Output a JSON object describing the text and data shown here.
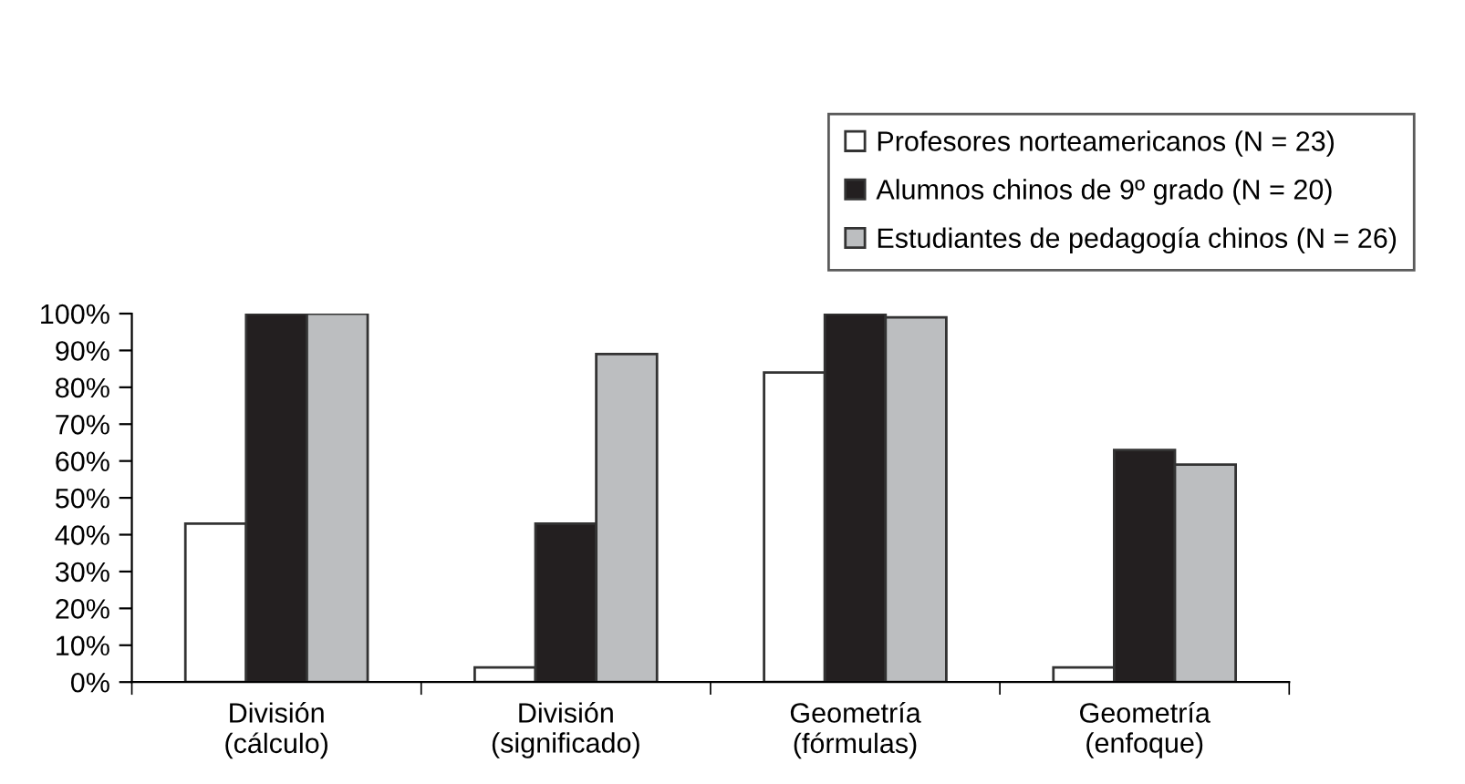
{
  "chart_data": {
    "type": "bar",
    "categories": [
      "División\n(cálculo)",
      "División\n(significado)",
      "Geometría\n(fórmulas)",
      "Geometría\n(enfoque)"
    ],
    "series": [
      {
        "name": "Profesores norteamericanos (N = 23)",
        "color": "#ffffff",
        "values": [
          43,
          4,
          84,
          4
        ]
      },
      {
        "name": "Alumnos chinos de 9º grado (N = 20)",
        "color": "#231f20",
        "values": [
          100,
          43,
          100,
          63
        ]
      },
      {
        "name": "Estudiantes de pedagogía chinos (N = 26)",
        "color": "#bcbec0",
        "values": [
          100,
          89,
          99,
          59
        ]
      }
    ],
    "ylim": [
      0,
      100
    ],
    "yticks": [
      {
        "value": 0,
        "label": "0%"
      },
      {
        "value": 10,
        "label": "10%"
      },
      {
        "value": 20,
        "label": "20%"
      },
      {
        "value": 30,
        "label": "30%"
      },
      {
        "value": 40,
        "label": "40%"
      },
      {
        "value": 50,
        "label": "50%"
      },
      {
        "value": 60,
        "label": "60%"
      },
      {
        "value": 70,
        "label": "70%"
      },
      {
        "value": 80,
        "label": "80%"
      },
      {
        "value": 90,
        "label": "90%"
      },
      {
        "value": 100,
        "label": "100%"
      }
    ],
    "grid": false,
    "legend": "top right"
  }
}
